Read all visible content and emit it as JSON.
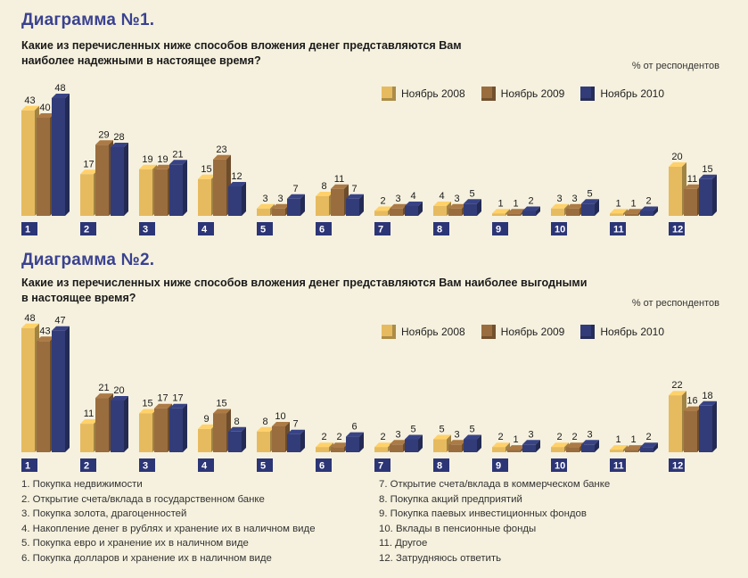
{
  "colors": {
    "nov2008": "#e6bb5f",
    "nov2009": "#9a6d3e",
    "nov2010": "#323c78",
    "tick_box": "#2c3576",
    "title": "#3a4290"
  },
  "legend": {
    "nov2008": "Ноябрь 2008",
    "nov2009": "Ноябрь 2009",
    "nov2010": "Ноябрь 2010"
  },
  "unit_label": "% от респондентов",
  "chart_data": [
    {
      "type": "bar",
      "title": "Диаграмма №1.",
      "subtitle_line1": "Какие из перечисленных ниже способов вложения денег представляются Вам",
      "subtitle_line2": "наиболее надежными в настоящее время?",
      "categories": [
        "1",
        "2",
        "3",
        "4",
        "5",
        "6",
        "7",
        "8",
        "9",
        "10",
        "11",
        "12"
      ],
      "series": [
        {
          "name": "Ноябрь 2008",
          "values": [
            43,
            17,
            19,
            15,
            3,
            8,
            2,
            4,
            1,
            3,
            1,
            20
          ]
        },
        {
          "name": "Ноябрь 2009",
          "values": [
            40,
            29,
            19,
            23,
            3,
            11,
            3,
            3,
            1,
            3,
            1,
            11
          ]
        },
        {
          "name": "Ноябрь 2010",
          "values": [
            48,
            28,
            21,
            12,
            7,
            7,
            4,
            5,
            2,
            5,
            2,
            15
          ]
        }
      ],
      "ylim": [
        0,
        48
      ]
    },
    {
      "type": "bar",
      "title": "Диаграмма №2.",
      "subtitle_line1": "Какие из перечисленных ниже способов вложения денег представляются Вам наиболее выгодными",
      "subtitle_line2": "в настоящее время?",
      "categories": [
        "1",
        "2",
        "3",
        "4",
        "5",
        "6",
        "7",
        "8",
        "9",
        "10",
        "11",
        "12"
      ],
      "series": [
        {
          "name": "Ноябрь 2008",
          "values": [
            48,
            11,
            15,
            9,
            8,
            2,
            2,
            5,
            2,
            2,
            1,
            22
          ]
        },
        {
          "name": "Ноябрь 2009",
          "values": [
            43,
            21,
            17,
            15,
            10,
            2,
            3,
            3,
            1,
            2,
            1,
            16
          ]
        },
        {
          "name": "Ноябрь 2010",
          "values": [
            47,
            20,
            17,
            8,
            7,
            6,
            5,
            5,
            3,
            3,
            2,
            18
          ]
        }
      ],
      "ylim": [
        0,
        48
      ]
    }
  ],
  "notes": {
    "left": [
      "1. Покупка недвижимости",
      "2. Открытие счета/вклада в государственном банке",
      "3. Покупка золота, драгоценностей",
      "4. Накопление денег в рублях и хранение их в наличном виде",
      "5. Покупка евро и хранение их в наличном виде",
      "6. Покупка долларов и хранение их в наличном виде"
    ],
    "right": [
      "7. Открытие счета/вклада в коммерческом банке",
      "8. Покупка акций предприятий",
      "9. Покупка паевых инвестиционных фондов",
      "10. Вклады в пенсионные фонды",
      "11. Другое",
      "12. Затрудняюсь ответить"
    ]
  }
}
